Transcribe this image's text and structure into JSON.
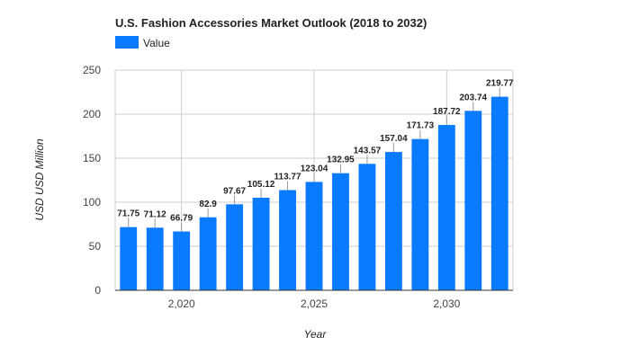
{
  "chart_data": {
    "type": "bar",
    "title": "U.S. Fashion Accessories Market Outlook (2018 to 2032)",
    "xlabel": "Year",
    "ylabel": "USD USD Million",
    "legend": {
      "placement": "top-left",
      "entries": [
        "Value"
      ]
    },
    "series": [
      {
        "name": "Value",
        "color": "#0a7bff",
        "x": [
          2018,
          2019,
          2020,
          2021,
          2022,
          2023,
          2024,
          2025,
          2026,
          2027,
          2028,
          2029,
          2030,
          2031,
          2032
        ],
        "values": [
          71.75,
          71.12,
          66.79,
          82.9,
          97.67,
          105.12,
          113.77,
          123.04,
          132.95,
          143.57,
          157.04,
          171.73,
          187.72,
          203.74,
          219.77
        ],
        "labels": [
          "71.75",
          "71.12",
          "66.79",
          "82.9",
          "97.67",
          "105.12",
          "113.77",
          "123.04",
          "132.95",
          "143.57",
          "157.04",
          "171.73",
          "187.72",
          "203.74",
          "219.77"
        ]
      }
    ],
    "ylim": [
      0,
      250
    ],
    "yticks": [
      0,
      50,
      100,
      150,
      200,
      250
    ],
    "ytick_labels": [
      "0",
      "50",
      "100",
      "150",
      "200",
      "250"
    ],
    "xticks": [
      2020,
      2025,
      2030
    ],
    "xtick_labels": [
      "2,020",
      "2,025",
      "2,030"
    ],
    "grid": true
  }
}
